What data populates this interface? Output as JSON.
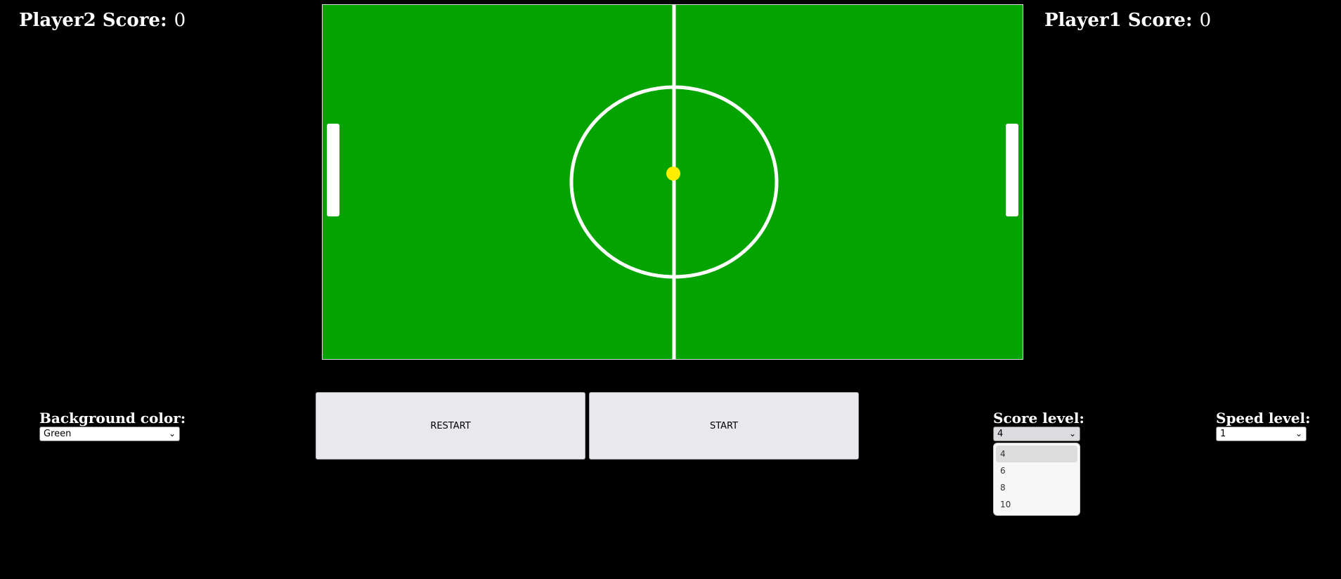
{
  "scores": {
    "player2_label": "Player2 Score:",
    "player2_value": "0",
    "player1_label": "Player1 Score:",
    "player1_value": "0"
  },
  "field": {
    "background_color": "#03a400",
    "line_color": "#ffffff",
    "ball_color": "#ffee00",
    "paddle_color": "#ffffff"
  },
  "buttons": {
    "restart_label": "RESTART",
    "start_label": "START"
  },
  "controls": {
    "background_label": "Background color:",
    "background_value": "Green",
    "score_label": "Score level:",
    "score_value": "4",
    "speed_label": "Speed level:",
    "speed_value": "1"
  },
  "score_dropdown": {
    "options": [
      "4",
      "6",
      "8",
      "10"
    ],
    "selected_index": 0
  }
}
